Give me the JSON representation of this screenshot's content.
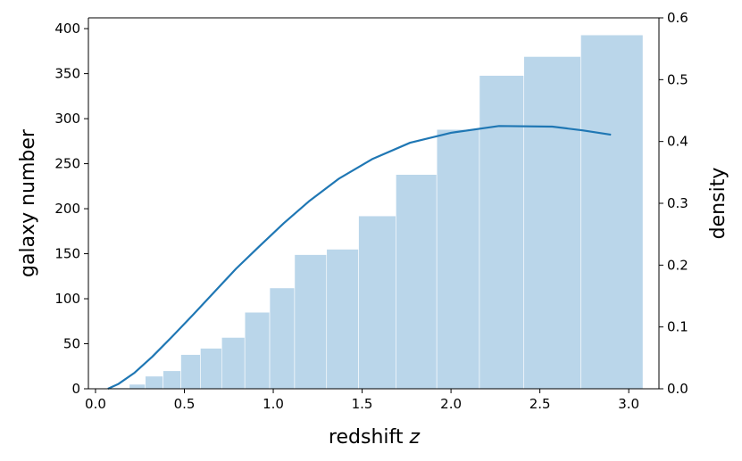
{
  "chart_data": {
    "type": "bar",
    "xlabel": "redshift",
    "xlabel_var": "z",
    "ylabel": "galaxy number",
    "y2label": "density",
    "xlim": [
      -0.04,
      3.17
    ],
    "ylim": [
      0,
      412
    ],
    "y2lim": [
      0,
      0.6
    ],
    "xticks": [
      "0.0",
      "0.5",
      "1.0",
      "1.5",
      "2.0",
      "2.5",
      "3.0"
    ],
    "yticks": [
      "0",
      "50",
      "100",
      "150",
      "200",
      "250",
      "300",
      "350",
      "400"
    ],
    "y2ticks": [
      "0.0",
      "0.1",
      "0.2",
      "0.3",
      "0.4",
      "0.5",
      "0.6"
    ],
    "grid": false,
    "histogram": {
      "color": "#bad6ea",
      "bin_edges": [
        0.07,
        0.19,
        0.28,
        0.38,
        0.48,
        0.59,
        0.71,
        0.84,
        0.98,
        1.12,
        1.3,
        1.48,
        1.69,
        1.92,
        2.16,
        2.41,
        2.73,
        3.08
      ],
      "counts": [
        1,
        5,
        14,
        20,
        38,
        45,
        57,
        85,
        112,
        149,
        155,
        192,
        238,
        288,
        348,
        369,
        393
      ]
    },
    "series": [
      {
        "color": "#1f77b4",
        "axis": "right",
        "x": [
          0.07,
          0.13,
          0.22,
          0.32,
          0.43,
          0.55,
          0.67,
          0.79,
          0.92,
          1.06,
          1.2,
          1.37,
          1.56,
          1.77,
          2.0,
          2.27,
          2.57,
          2.74,
          2.9
        ],
        "y": [
          0.0,
          0.008,
          0.026,
          0.052,
          0.084,
          0.12,
          0.157,
          0.194,
          0.23,
          0.268,
          0.303,
          0.34,
          0.372,
          0.398,
          0.414,
          0.425,
          0.424,
          0.418,
          0.411
        ]
      }
    ]
  }
}
